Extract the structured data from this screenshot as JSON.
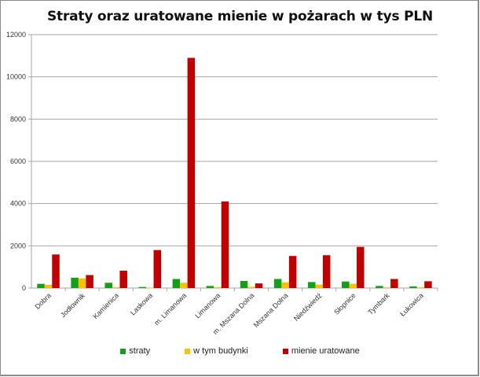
{
  "chart_data": {
    "type": "bar",
    "title": "Straty oraz uratowane mienie w pożarach w tys PLN",
    "xlabel": "",
    "ylabel": "",
    "ylim": [
      0,
      12000
    ],
    "yticks": [
      0,
      2000,
      4000,
      6000,
      8000,
      10000,
      12000
    ],
    "grid": true,
    "legend_position": "bottom",
    "categories": [
      "Dobra",
      "Jodłownik",
      "Kamienica",
      "Laskowa",
      "m. Limanowa",
      "Limanowa",
      "m. Mszana Dolna",
      "Mszana Dolna",
      "Niedźwiedź",
      "Słopnice",
      "Tymbark",
      "Łukowica"
    ],
    "series": [
      {
        "name": "straty",
        "color": "#13A019",
        "values": [
          200,
          490,
          250,
          50,
          430,
          100,
          335,
          430,
          285,
          310,
          100,
          80
        ]
      },
      {
        "name": "w tym budynki",
        "color": "#FFC000",
        "values": [
          150,
          455,
          40,
          10,
          250,
          40,
          60,
          270,
          160,
          200,
          30,
          30
        ]
      },
      {
        "name": "mienie uratowane",
        "color": "#C00000",
        "values": [
          1590,
          615,
          825,
          1800,
          10900,
          4100,
          220,
          1520,
          1555,
          1950,
          430,
          320
        ]
      }
    ]
  }
}
